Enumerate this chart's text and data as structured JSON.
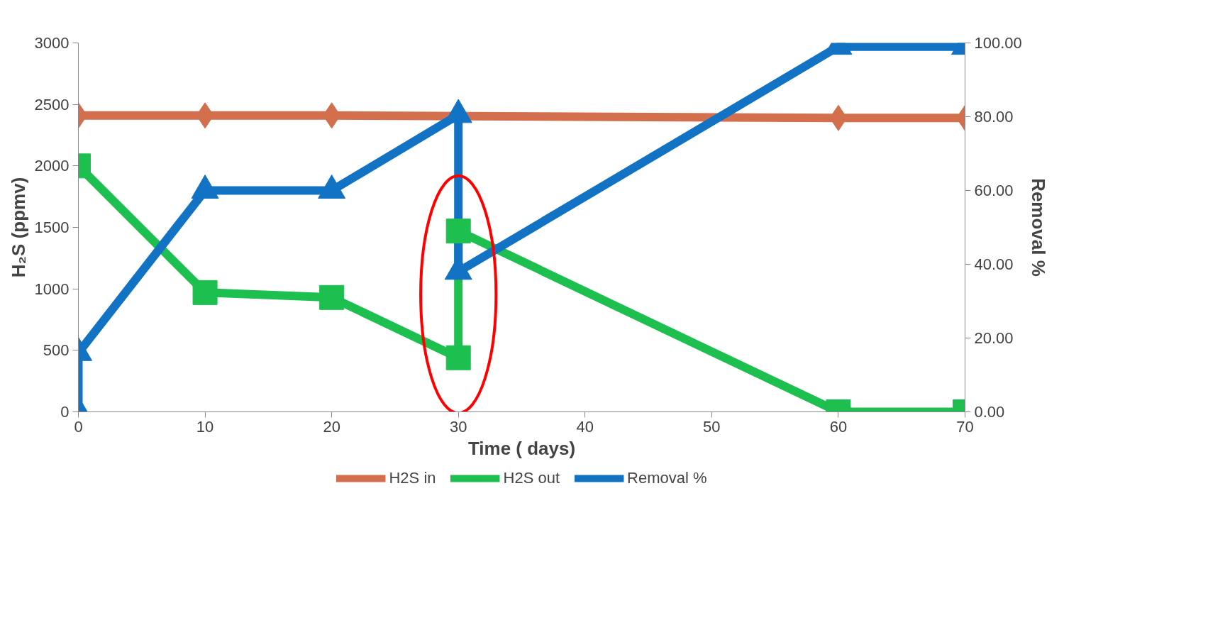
{
  "chart_data": {
    "type": "line",
    "xlabel": "Time ( days)",
    "ylabel": "H₂S (ppmv)",
    "y2label": "Removal %",
    "xlim": [
      0,
      70
    ],
    "xticks": [
      0,
      10,
      20,
      30,
      40,
      50,
      60,
      70
    ],
    "ylim": [
      0,
      3000
    ],
    "yticks": [
      0,
      500,
      1000,
      1500,
      2000,
      2500,
      3000
    ],
    "y2lim": [
      0,
      100
    ],
    "y2ticks": [
      {
        "value": 0,
        "label": "0.00"
      },
      {
        "value": 20,
        "label": "20.00"
      },
      {
        "value": 40,
        "label": "40.00"
      },
      {
        "value": 60,
        "label": "60.00"
      },
      {
        "value": 80,
        "label": "80.00"
      },
      {
        "value": 100,
        "label": "100.00"
      }
    ],
    "grid": false,
    "legend": "bottom",
    "line_style": "solid",
    "series": [
      {
        "name": "H2S in",
        "color": "#d46f4d",
        "marker": "diamond",
        "x": [
          0,
          10,
          20,
          60,
          70
        ],
        "values": [
          2410,
          2410,
          2410,
          2390,
          2390
        ]
      },
      {
        "name": "H2S out",
        "color": "#1dbf4f",
        "marker": "square",
        "x": [
          0,
          10,
          20,
          30,
          30,
          60,
          70
        ],
        "values": [
          2000,
          970,
          930,
          440,
          1470,
          0,
          0
        ]
      },
      {
        "name": "Removal %",
        "color": "#1273c4",
        "marker": "triangle",
        "axis": "y2",
        "x": [
          0,
          0,
          10,
          20,
          30,
          30,
          60,
          70
        ],
        "values": [
          0,
          16,
          60,
          60,
          80.5,
          38,
          99,
          99
        ]
      }
    ]
  }
}
